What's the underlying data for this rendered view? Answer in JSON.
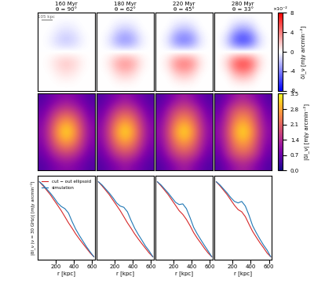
{
  "chart_data": [
    {
      "type": "heatmap",
      "title": "160 Myr\nθ = 90°",
      "tick_labels": false,
      "annotations": [
        "105 kpc"
      ],
      "cells": [
        [
          0,
          0,
          0,
          0,
          0,
          0,
          0
        ],
        [
          0,
          0,
          -0.5,
          -0.8,
          -0.5,
          0,
          0
        ],
        [
          0,
          -0.4,
          -1.5,
          -2,
          -1.5,
          -0.4,
          0
        ],
        [
          0,
          0,
          0,
          0,
          0,
          0,
          0
        ],
        [
          0,
          0.4,
          1.5,
          2,
          1.5,
          0.4,
          0
        ],
        [
          0,
          0,
          0.5,
          0.8,
          0.5,
          0,
          0
        ],
        [
          0,
          0,
          0,
          0,
          0,
          0,
          0
        ]
      ]
    },
    {
      "type": "heatmap",
      "title": "180 Myr\nθ = 62°",
      "tick_labels": false,
      "cells": [
        [
          0,
          0,
          0,
          0,
          0,
          0,
          0
        ],
        [
          0,
          0,
          -1,
          -1.6,
          -1,
          0,
          0
        ],
        [
          0,
          -0.8,
          -3,
          -4,
          -3,
          -0.8,
          0
        ],
        [
          0,
          0,
          0,
          0,
          0,
          0,
          0
        ],
        [
          0,
          0.8,
          3,
          4,
          3,
          0.8,
          0
        ],
        [
          0,
          0,
          1,
          1.6,
          1,
          0,
          0
        ],
        [
          0,
          0,
          0,
          0,
          0,
          0,
          0
        ]
      ]
    },
    {
      "type": "heatmap",
      "title": "220 Myr\nθ = 45°",
      "tick_labels": false,
      "cells": [
        [
          0,
          0,
          0,
          0,
          0,
          0,
          0
        ],
        [
          0,
          0,
          -1.3,
          -2,
          -1.3,
          0,
          0
        ],
        [
          0,
          -1,
          -4,
          -5,
          -4,
          -1,
          0
        ],
        [
          0,
          0,
          0,
          0,
          0,
          0,
          0
        ],
        [
          0,
          1,
          4,
          5,
          4,
          1,
          0
        ],
        [
          0,
          0,
          1.3,
          2,
          1.3,
          0,
          0
        ],
        [
          0,
          0,
          0,
          0,
          0,
          0,
          0
        ]
      ]
    },
    {
      "type": "heatmap",
      "title": "280 Myr\nθ = 33°",
      "tick_labels": false,
      "cells": [
        [
          0,
          0,
          0,
          0,
          0,
          0,
          0
        ],
        [
          0,
          0,
          -2,
          -3,
          -2,
          0,
          0
        ],
        [
          0,
          -1.5,
          -5.5,
          -7,
          -5.5,
          -1.5,
          0
        ],
        [
          0,
          0,
          0,
          0,
          0,
          0,
          0
        ],
        [
          0,
          1.5,
          5.5,
          7,
          5.5,
          1.5,
          0
        ],
        [
          0,
          0,
          2,
          3,
          2,
          0,
          0
        ],
        [
          0,
          0,
          0,
          0,
          0,
          0,
          0
        ]
      ],
      "colorbar": {
        "range": [
          -8,
          8
        ],
        "ticks": [
          -8,
          -4,
          0,
          4,
          8
        ],
        "label": "δI_ν [mJy arcmin⁻²]",
        "multiplier_label": "×10⁻²"
      }
    },
    {
      "type": "heatmap",
      "tick_labels": false,
      "cells": [
        [
          0.5,
          0.7,
          0.9,
          1.0,
          0.9,
          0.7,
          0.5
        ],
        [
          0.7,
          1.1,
          1.5,
          1.7,
          1.5,
          1.1,
          0.7
        ],
        [
          0.9,
          1.5,
          2.3,
          2.7,
          2.3,
          1.5,
          0.9
        ],
        [
          1.0,
          1.7,
          2.8,
          3.4,
          2.8,
          1.7,
          1.0
        ],
        [
          0.9,
          1.5,
          2.3,
          2.7,
          2.3,
          1.5,
          0.9
        ],
        [
          0.7,
          1.1,
          1.5,
          1.7,
          1.5,
          1.1,
          0.7
        ],
        [
          0.5,
          0.7,
          0.9,
          1.0,
          0.9,
          0.7,
          0.5
        ]
      ]
    },
    {
      "type": "heatmap",
      "tick_labels": false,
      "cells": [
        [
          0.5,
          0.7,
          0.9,
          1.1,
          0.9,
          0.7,
          0.5
        ],
        [
          0.7,
          1.1,
          1.6,
          1.8,
          1.6,
          1.1,
          0.7
        ],
        [
          0.9,
          1.5,
          2.3,
          2.7,
          2.3,
          1.5,
          0.9
        ],
        [
          1.0,
          1.7,
          2.8,
          3.4,
          2.8,
          1.7,
          1.0
        ],
        [
          0.9,
          1.5,
          2.3,
          2.7,
          2.3,
          1.5,
          0.9
        ],
        [
          0.7,
          1.1,
          1.6,
          1.8,
          1.6,
          1.1,
          0.7
        ],
        [
          0.5,
          0.7,
          0.9,
          1.1,
          0.9,
          0.7,
          0.5
        ]
      ]
    },
    {
      "type": "heatmap",
      "tick_labels": false,
      "cells": [
        [
          0.5,
          0.7,
          1.0,
          1.2,
          1.0,
          0.7,
          0.5
        ],
        [
          0.7,
          1.2,
          1.7,
          1.9,
          1.7,
          1.2,
          0.7
        ],
        [
          0.9,
          1.5,
          2.3,
          2.7,
          2.3,
          1.5,
          0.9
        ],
        [
          1.0,
          1.7,
          2.8,
          3.4,
          2.8,
          1.7,
          1.0
        ],
        [
          0.9,
          1.5,
          2.3,
          2.7,
          2.3,
          1.5,
          0.9
        ],
        [
          0.7,
          1.2,
          1.7,
          1.9,
          1.7,
          1.2,
          0.7
        ],
        [
          0.5,
          0.7,
          1.0,
          1.2,
          1.0,
          0.7,
          0.5
        ]
      ]
    },
    {
      "type": "heatmap",
      "tick_labels": false,
      "cells": [
        [
          0.5,
          0.8,
          1.1,
          1.3,
          1.1,
          0.8,
          0.5
        ],
        [
          0.7,
          1.3,
          1.9,
          2.1,
          1.9,
          1.3,
          0.7
        ],
        [
          0.9,
          1.5,
          2.4,
          2.8,
          2.4,
          1.5,
          0.9
        ],
        [
          1.0,
          1.7,
          2.8,
          3.4,
          2.8,
          1.7,
          1.0
        ],
        [
          0.9,
          1.5,
          2.4,
          2.8,
          2.4,
          1.5,
          0.9
        ],
        [
          0.7,
          1.3,
          1.9,
          2.1,
          1.9,
          1.3,
          0.7
        ],
        [
          0.5,
          0.8,
          1.1,
          1.3,
          1.1,
          0.8,
          0.5
        ]
      ],
      "colorbar": {
        "range": [
          0,
          3.5
        ],
        "ticks": [
          {
            "value": 0,
            "label": "0.0"
          },
          0.7,
          1.4,
          2.1,
          2.8,
          3.5
        ],
        "label": "|δI_ν| [mJy arcmin⁻²]"
      }
    },
    {
      "type": "line",
      "x_label": "r [kpc]",
      "y_label": "|δI_ν (ν = 30 GHz)| [mJy arcmin⁻²]",
      "log": "y",
      "legend": "upper right",
      "tick_labels": "x",
      "xlim": [
        0,
        630
      ],
      "xticks": [
        200,
        400,
        600
      ],
      "ylim": [
        0.008,
        3
      ],
      "yticks": [],
      "x": [
        20,
        60,
        100,
        140,
        180,
        220,
        260,
        300,
        340,
        380,
        420,
        460,
        500,
        540,
        580,
        620
      ],
      "series": [
        {
          "name": "cut − out ellipsoid",
          "color": "#d62728",
          "values": [
            2.0,
            1.5,
            1.1,
            0.8,
            0.55,
            0.38,
            0.26,
            0.17,
            0.11,
            0.075,
            0.05,
            0.035,
            0.025,
            0.018,
            0.013,
            0.01
          ]
        },
        {
          "name": "simulation",
          "color": "#1f77b4",
          "values": [
            2.0,
            1.6,
            1.2,
            0.9,
            0.65,
            0.45,
            0.35,
            0.3,
            0.22,
            0.12,
            0.07,
            0.045,
            0.03,
            0.02,
            0.014,
            0.01
          ]
        }
      ]
    },
    {
      "type": "line",
      "x_label": "r [kpc]",
      "log": "y",
      "tick_labels": "x",
      "xlim": [
        0,
        630
      ],
      "xticks": [
        200,
        400,
        600
      ],
      "ylim": [
        0.008,
        3
      ],
      "yticks": [],
      "x": [
        20,
        60,
        100,
        140,
        180,
        220,
        260,
        300,
        340,
        380,
        420,
        460,
        500,
        540,
        580,
        620
      ],
      "series": [
        {
          "name": "cut − out ellipsoid",
          "color": "#d62728",
          "values": [
            2.0,
            1.5,
            1.1,
            0.8,
            0.55,
            0.38,
            0.26,
            0.17,
            0.11,
            0.075,
            0.05,
            0.035,
            0.025,
            0.018,
            0.013,
            0.01
          ]
        },
        {
          "name": "simulation",
          "color": "#1f77b4",
          "values": [
            2.0,
            1.6,
            1.2,
            0.9,
            0.65,
            0.45,
            0.36,
            0.33,
            0.24,
            0.13,
            0.075,
            0.048,
            0.032,
            0.021,
            0.015,
            0.01
          ]
        }
      ]
    },
    {
      "type": "line",
      "x_label": "r [kpc]",
      "log": "y",
      "tick_labels": "x",
      "xlim": [
        0,
        630
      ],
      "xticks": [
        200,
        400,
        600
      ],
      "ylim": [
        0.008,
        3
      ],
      "yticks": [],
      "x": [
        20,
        60,
        100,
        140,
        180,
        220,
        260,
        300,
        340,
        380,
        420,
        460,
        500,
        540,
        580,
        620
      ],
      "series": [
        {
          "name": "cut − out ellipsoid",
          "color": "#d62728",
          "values": [
            2.0,
            1.5,
            1.1,
            0.8,
            0.55,
            0.38,
            0.26,
            0.2,
            0.14,
            0.09,
            0.055,
            0.037,
            0.026,
            0.018,
            0.013,
            0.01
          ]
        },
        {
          "name": "simulation",
          "color": "#1f77b4",
          "values": [
            2.0,
            1.6,
            1.2,
            0.9,
            0.65,
            0.47,
            0.4,
            0.42,
            0.3,
            0.16,
            0.08,
            0.05,
            0.033,
            0.022,
            0.015,
            0.01
          ]
        }
      ]
    },
    {
      "type": "line",
      "x_label": "r [kpc]",
      "log": "y",
      "tick_labels": "x",
      "xlim": [
        0,
        630
      ],
      "xticks": [
        200,
        400,
        600
      ],
      "ylim": [
        0.008,
        3
      ],
      "yticks": [],
      "x": [
        20,
        60,
        100,
        140,
        180,
        220,
        260,
        300,
        340,
        380,
        420,
        460,
        500,
        540,
        580,
        620
      ],
      "series": [
        {
          "name": "cut − out ellipsoid",
          "color": "#d62728",
          "values": [
            2.0,
            1.5,
            1.1,
            0.8,
            0.55,
            0.38,
            0.28,
            0.24,
            0.17,
            0.1,
            0.06,
            0.04,
            0.027,
            0.019,
            0.013,
            0.01
          ]
        },
        {
          "name": "simulation",
          "color": "#1f77b4",
          "values": [
            2.0,
            1.6,
            1.2,
            0.9,
            0.65,
            0.5,
            0.45,
            0.5,
            0.36,
            0.19,
            0.09,
            0.055,
            0.035,
            0.023,
            0.016,
            0.01
          ]
        }
      ]
    }
  ]
}
